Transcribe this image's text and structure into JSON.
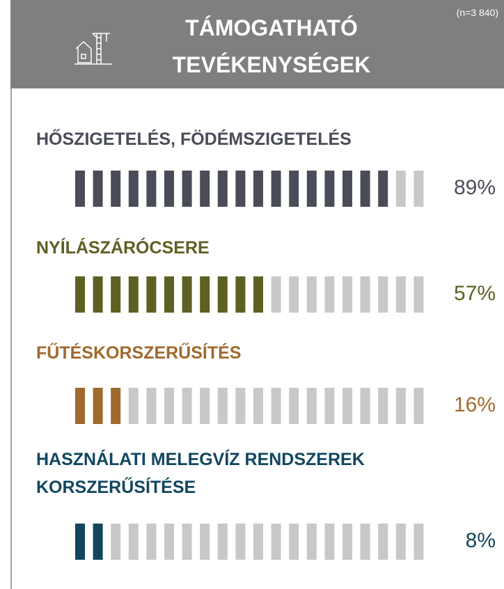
{
  "chart_data": {
    "type": "pictogram-bar",
    "title": "TÁMOGATHATÓ TEVÉKENYSÉGEK",
    "subtitle": "(n=3 840)",
    "categories": [
      "HŐSZIGETELÉS, FÖDÉMSZIGETELÉS",
      "NYÍLÁSZÁRÓCSERE",
      "FŰTÉSKORSZERŰSÍTÉS",
      "HASZNÁLATI MELEGVÍZ RENDSZEREK KORSZERŰSÍTÉSE"
    ],
    "values": [
      89,
      57,
      16,
      8
    ],
    "value_labels": [
      "89%",
      "57%",
      "16%",
      "8%"
    ],
    "colors": [
      "#4a4d58",
      "#5e5f23",
      "#a0692e",
      "#12465f"
    ],
    "empty_color": "#c8c8c8",
    "xlim": [
      0,
      100
    ]
  }
}
